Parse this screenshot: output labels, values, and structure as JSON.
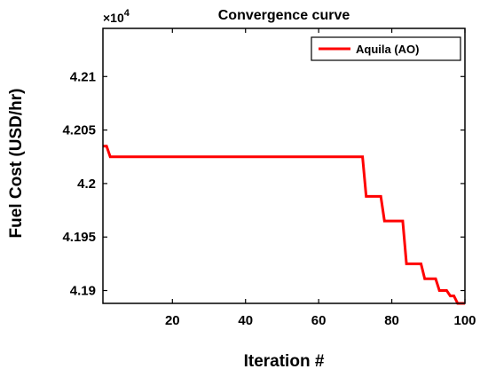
{
  "chart_data": {
    "type": "line",
    "title": "Convergence curve",
    "xlabel": "Iteration #",
    "ylabel": "Fuel Cost (USD/hr)",
    "y_exponent_label": "×10",
    "y_exponent_power": "4",
    "xlim": [
      1,
      100
    ],
    "ylim": [
      4.1888,
      4.2145
    ],
    "x_ticks": [
      20,
      40,
      60,
      80,
      100
    ],
    "x_tick_labels": [
      "20",
      "40",
      "60",
      "80",
      "100"
    ],
    "y_ticks": [
      4.19,
      4.195,
      4.2,
      4.205,
      4.21
    ],
    "y_tick_labels": [
      "4.19",
      "4.195",
      "4.2",
      "4.205",
      "4.21"
    ],
    "grid": false,
    "legend_position": "top-right",
    "series": [
      {
        "name": "Aquila (AO)",
        "color": "#ff0000",
        "x": [
          1,
          2,
          3,
          72,
          73,
          77,
          78,
          83,
          84,
          88,
          89,
          92,
          93,
          95,
          96,
          97,
          98,
          100
        ],
        "y": [
          4.2035,
          4.2035,
          4.2025,
          4.2025,
          4.1988,
          4.1988,
          4.1965,
          4.1965,
          4.1925,
          4.1925,
          4.1911,
          4.1911,
          4.19,
          4.19,
          4.1895,
          4.1895,
          4.1888,
          4.1888
        ]
      }
    ]
  }
}
